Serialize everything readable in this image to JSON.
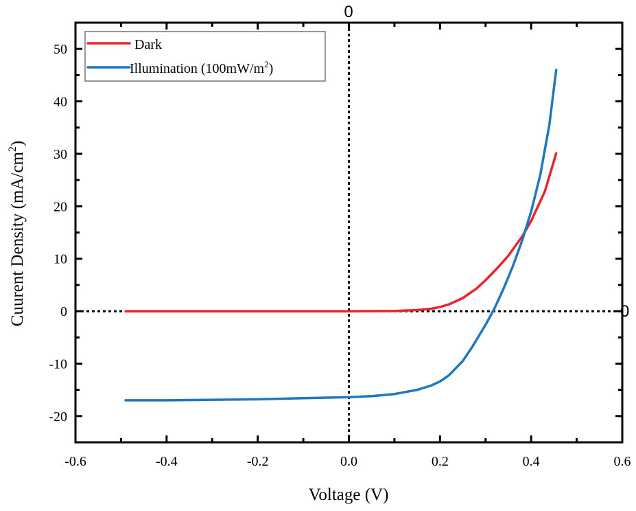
{
  "chart_data": {
    "type": "line",
    "title": "",
    "xlabel": "Voltage (V)",
    "ylabel": "Cuurent Density (mA/cm²)",
    "ylabel_main": "Cuurent Density (mA/cm",
    "ylabel_sup": "2",
    "ylabel_end": ")",
    "xlim": [
      -0.6,
      0.6
    ],
    "ylim": [
      -25,
      55
    ],
    "xticks": [
      -0.6,
      -0.4,
      -0.2,
      0.0,
      0.2,
      0.4,
      0.6
    ],
    "xtick_labels": [
      "-0.6",
      "-0.4",
      "-0.2",
      "0.0",
      "0.2",
      "0.4",
      "0.6"
    ],
    "yticks": [
      -20,
      -10,
      0,
      10,
      20,
      30,
      40,
      50
    ],
    "ytick_labels": [
      "-20",
      "-10",
      "0",
      "10",
      "20",
      "30",
      "40",
      "50"
    ],
    "grid": false,
    "legend_placement": "top-left",
    "reference_lines": {
      "x0_label": "0",
      "y0_label": "0"
    },
    "series": [
      {
        "name": "Dark",
        "color": "#e8262a",
        "x": [
          -0.49,
          -0.3,
          -0.1,
          0.0,
          0.1,
          0.15,
          0.18,
          0.2,
          0.22,
          0.25,
          0.28,
          0.3,
          0.33,
          0.35,
          0.38,
          0.4,
          0.43,
          0.455
        ],
        "y": [
          0,
          0,
          0,
          0,
          0.05,
          0.2,
          0.45,
          0.8,
          1.3,
          2.5,
          4.3,
          5.9,
          8.6,
          10.6,
          14.2,
          17.2,
          22.8,
          30.1
        ]
      },
      {
        "name": "Illumination (100mW/m²)",
        "legend_main": "Illumination (100mW/m",
        "legend_sup": "2",
        "legend_end": ")",
        "color": "#1f77c0",
        "x": [
          -0.49,
          -0.4,
          -0.3,
          -0.2,
          -0.1,
          0.0,
          0.05,
          0.1,
          0.15,
          0.18,
          0.2,
          0.22,
          0.25,
          0.27,
          0.3,
          0.32,
          0.34,
          0.36,
          0.38,
          0.4,
          0.42,
          0.44,
          0.455
        ],
        "y": [
          -17.0,
          -17.0,
          -16.9,
          -16.8,
          -16.6,
          -16.4,
          -16.2,
          -15.8,
          -15.0,
          -14.2,
          -13.4,
          -12.2,
          -9.5,
          -6.9,
          -2.6,
          0.6,
          4.4,
          8.6,
          13.4,
          19.0,
          26.0,
          35.5,
          46.0
        ]
      }
    ]
  }
}
